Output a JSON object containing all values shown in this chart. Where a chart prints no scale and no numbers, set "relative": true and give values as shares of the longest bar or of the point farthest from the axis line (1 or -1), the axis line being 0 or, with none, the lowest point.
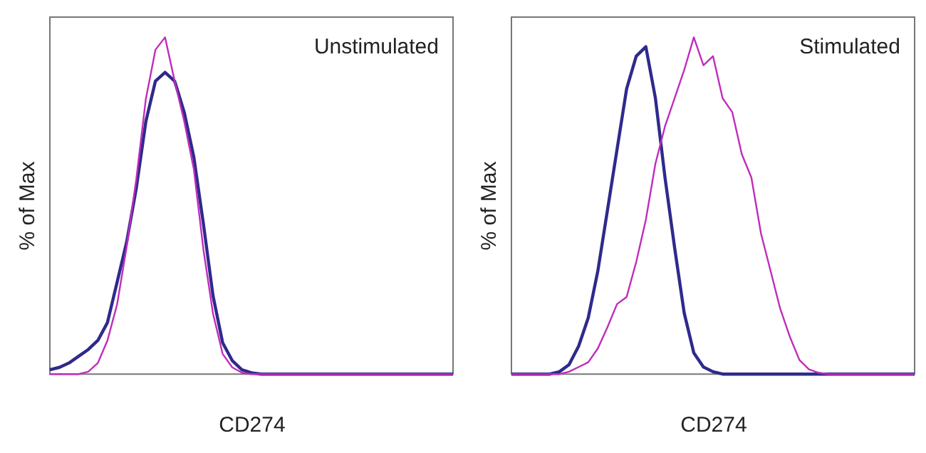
{
  "chart_data": [
    {
      "type": "line",
      "relative": true,
      "xlabel": "CD274",
      "ylabel": "% of Max",
      "annotations": [
        "Unstimulated"
      ],
      "grid": false,
      "legend": false,
      "marker": "none",
      "categories": [
        null,
        null,
        null,
        null,
        null,
        null,
        null,
        null,
        null,
        null,
        null,
        null,
        null,
        null,
        null,
        null,
        null,
        null,
        null,
        null,
        null,
        null,
        null,
        null,
        null,
        null,
        null,
        null,
        null,
        null,
        null,
        null,
        null,
        null,
        null,
        null,
        null,
        null,
        null,
        null,
        null,
        null,
        null
      ],
      "series": [
        {
          "color": "#2e2a8c",
          "values": [
            0.013,
            0.02,
            0.033,
            0.053,
            0.073,
            0.1,
            0.153,
            0.272,
            0.392,
            0.551,
            0.75,
            0.87,
            0.896,
            0.87,
            0.777,
            0.644,
            0.445,
            0.232,
            0.093,
            0.04,
            0.013,
            0.004,
            0,
            0,
            0,
            0,
            0,
            0,
            0,
            0,
            0,
            0,
            0,
            0,
            0,
            0,
            0,
            0,
            0,
            0,
            0,
            0,
            0
          ]
        },
        {
          "color": "#c02cbc",
          "values": [
            0,
            0,
            0,
            0,
            0.007,
            0.033,
            0.1,
            0.206,
            0.378,
            0.578,
            0.817,
            0.963,
            1,
            0.87,
            0.75,
            0.608,
            0.369,
            0.179,
            0.06,
            0.02,
            0.004,
            0,
            0,
            0,
            0,
            0,
            0,
            0,
            0,
            0,
            0,
            0,
            0,
            0,
            0,
            0,
            0,
            0,
            0,
            0,
            0,
            0,
            0
          ]
        }
      ]
    },
    {
      "type": "line",
      "relative": true,
      "xlabel": "CD274",
      "ylabel": "% of Max",
      "annotations": [
        "Stimulated"
      ],
      "grid": false,
      "legend": false,
      "marker": "none",
      "categories": [
        null,
        null,
        null,
        null,
        null,
        null,
        null,
        null,
        null,
        null,
        null,
        null,
        null,
        null,
        null,
        null,
        null,
        null,
        null,
        null,
        null,
        null,
        null,
        null,
        null,
        null,
        null,
        null,
        null,
        null,
        null,
        null,
        null,
        null,
        null,
        null,
        null,
        null,
        null,
        null,
        null,
        null,
        null
      ],
      "series": [
        {
          "color": "#2e2a8c",
          "values": [
            0,
            0,
            0,
            0,
            0,
            0.007,
            0.028,
            0.083,
            0.167,
            0.306,
            0.486,
            0.667,
            0.847,
            0.944,
            0.972,
            0.819,
            0.583,
            0.375,
            0.181,
            0.063,
            0.021,
            0.007,
            0,
            0,
            0,
            0,
            0,
            0,
            0,
            0,
            0,
            0,
            0,
            0,
            0,
            0,
            0,
            0,
            0,
            0,
            0,
            0,
            0
          ]
        },
        {
          "color": "#c02cbc",
          "values": [
            0,
            0,
            0,
            0,
            0,
            0,
            0.007,
            0.021,
            0.035,
            0.076,
            0.139,
            0.208,
            0.229,
            0.333,
            0.458,
            0.625,
            0.736,
            0.819,
            0.903,
            1,
            0.917,
            0.944,
            0.819,
            0.778,
            0.653,
            0.583,
            0.417,
            0.306,
            0.194,
            0.111,
            0.042,
            0.014,
            0.004,
            0,
            0,
            0,
            0,
            0,
            0,
            0,
            0,
            0,
            0
          ]
        }
      ]
    }
  ]
}
